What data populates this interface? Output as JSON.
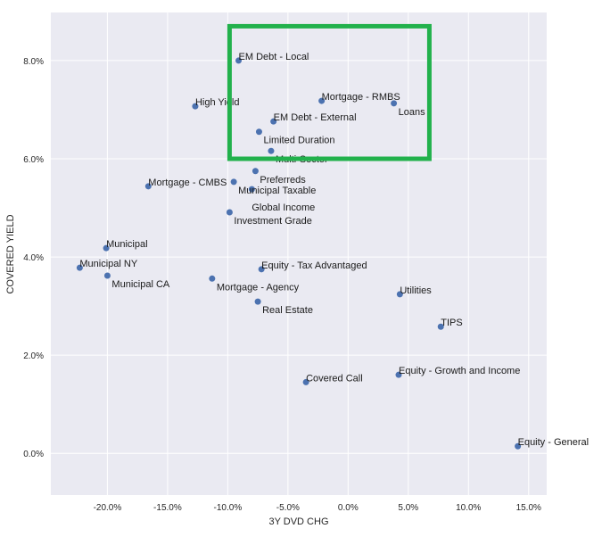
{
  "chart_data": {
    "type": "scatter",
    "title": "",
    "xlabel": "3Y DVD CHG",
    "ylabel": "COVERED YIELD",
    "xlim": [
      -24.7,
      16.5
    ],
    "ylim": [
      -0.85,
      8.98
    ],
    "x_ticks": [
      -20,
      -15,
      -10,
      -5,
      0,
      5,
      10,
      15
    ],
    "x_tick_labels": [
      "-20.0%",
      "-15.0%",
      "-10.0%",
      "-5.0%",
      "0.0%",
      "5.0%",
      "10.0%",
      "15.0%"
    ],
    "y_ticks": [
      0,
      2,
      4,
      6,
      8
    ],
    "y_tick_labels": [
      "0.0%",
      "2.0%",
      "4.0%",
      "6.0%",
      "8.0%"
    ],
    "grid": true,
    "colors": {
      "background": "#eaeaf2",
      "point": "#4c72b0",
      "grid": "#ffffff",
      "highlight": "#22b14c"
    },
    "points": [
      {
        "label": "EM Debt - Local",
        "x": -9.1,
        "y": 8.0
      },
      {
        "label": "Mortgage - RMBS",
        "x": -2.2,
        "y": 7.18
      },
      {
        "label": "Loans",
        "x": 3.8,
        "y": 7.13
      },
      {
        "label": "High Yield",
        "x": -12.7,
        "y": 7.07
      },
      {
        "label": "EM Debt - External",
        "x": -6.2,
        "y": 6.76
      },
      {
        "label": "Limited Duration",
        "x": -7.4,
        "y": 6.55
      },
      {
        "label": "Multi-Sector",
        "x": -6.4,
        "y": 6.16
      },
      {
        "label": "Preferreds",
        "x": -7.7,
        "y": 5.75
      },
      {
        "label": "Municipal Taxable",
        "x": -9.5,
        "y": 5.53
      },
      {
        "label": "Mortgage - CMBS",
        "x": -16.6,
        "y": 5.44
      },
      {
        "label": "Global Income",
        "x": -8.0,
        "y": 5.38
      },
      {
        "label": "Investment Grade",
        "x": -9.85,
        "y": 4.91
      },
      {
        "label": "Municipal",
        "x": -20.1,
        "y": 4.18
      },
      {
        "label": "Municipal NY",
        "x": -22.3,
        "y": 3.78
      },
      {
        "label": "Equity - Tax Advantaged",
        "x": -7.2,
        "y": 3.75
      },
      {
        "label": "Municipal CA",
        "x": -20.0,
        "y": 3.62
      },
      {
        "label": "Mortgage - Agency",
        "x": -11.3,
        "y": 3.56
      },
      {
        "label": "Utilities",
        "x": 4.3,
        "y": 3.24
      },
      {
        "label": "Real Estate",
        "x": -7.5,
        "y": 3.09
      },
      {
        "label": "TIPS",
        "x": 7.7,
        "y": 2.58
      },
      {
        "label": "Equity - Growth and Income",
        "x": 4.2,
        "y": 1.6
      },
      {
        "label": "Covered Call",
        "x": -3.5,
        "y": 1.45
      },
      {
        "label": "Equity - General",
        "x": 14.1,
        "y": 0.145
      }
    ],
    "highlight_box": {
      "x0": -9.85,
      "x1": 6.75,
      "y0": 6.0,
      "y1": 8.7
    }
  }
}
